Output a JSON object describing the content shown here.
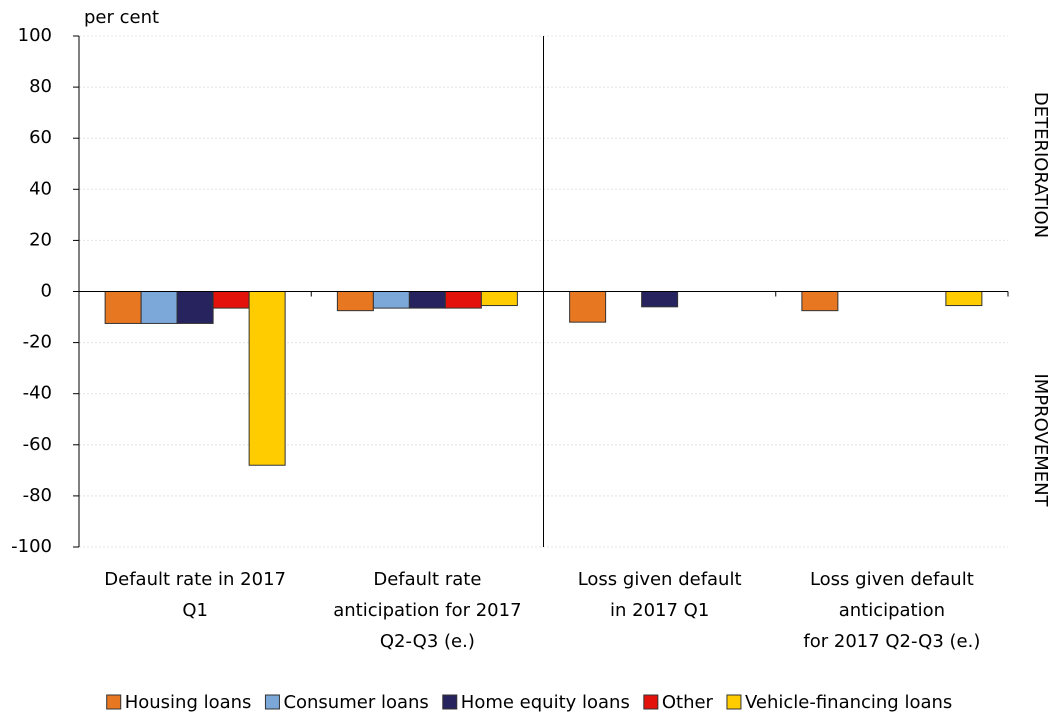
{
  "chart_data": {
    "type": "bar",
    "y_unit_label": "per cent",
    "side_labels": [
      "DETERIORATION",
      "IMPROVEMENT"
    ],
    "categories": [
      "Default rate in 2017\nQ1",
      "Default rate\nanticipation for 2017\nQ2-Q3 (e.)",
      "Loss given default\nin 2017 Q1",
      "Loss given default\nanticipation\nfor 2017 Q2-Q3 (e.)"
    ],
    "series": [
      {
        "name": "Housing loans",
        "color": "#E87722",
        "values": [
          -12.5,
          -7.5,
          -12,
          -7.5
        ]
      },
      {
        "name": "Consumer loans",
        "color": "#7BA7D9",
        "values": [
          -12.5,
          -6.5,
          0,
          0
        ]
      },
      {
        "name": "Home equity loans",
        "color": "#27235E",
        "values": [
          -12.5,
          -6.5,
          -6,
          0
        ]
      },
      {
        "name": "Other",
        "color": "#E3120B",
        "values": [
          -6.5,
          -6.5,
          0,
          0
        ]
      },
      {
        "name": "Vehicle-financing loans",
        "color": "#FFCC00",
        "values": [
          -68,
          -5.5,
          0,
          -5.5
        ]
      }
    ],
    "ylim": [
      -100,
      100
    ],
    "yticks": [
      -100,
      -80,
      -60,
      -40,
      -20,
      0,
      20,
      40,
      60,
      80,
      100
    ],
    "grid": true
  }
}
